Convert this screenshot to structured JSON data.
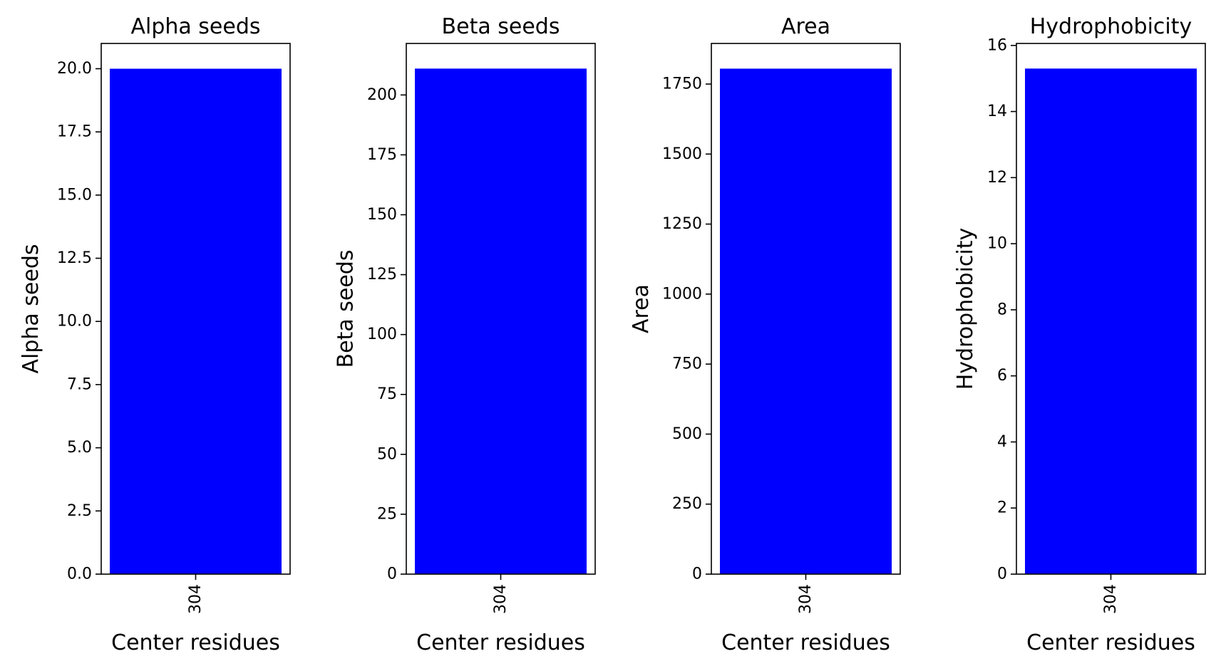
{
  "chart_data": [
    {
      "type": "bar",
      "title": "Alpha seeds",
      "xlabel": "Center residues",
      "ylabel": "Alpha seeds",
      "categories": [
        "304"
      ],
      "values": [
        20.0
      ],
      "ylim": [
        0,
        21
      ],
      "yticks": [
        "0.0",
        "2.5",
        "5.0",
        "7.5",
        "10.0",
        "12.5",
        "15.0",
        "17.5",
        "20.0"
      ],
      "color": "#0000ff",
      "grid": false
    },
    {
      "type": "bar",
      "title": "Beta seeds",
      "xlabel": "Center residues",
      "ylabel": "Beta seeds",
      "categories": [
        "304"
      ],
      "values": [
        211
      ],
      "ylim": [
        0,
        221.5
      ],
      "yticks": [
        "0",
        "25",
        "50",
        "75",
        "100",
        "125",
        "150",
        "175",
        "200"
      ],
      "color": "#0000ff",
      "grid": false
    },
    {
      "type": "bar",
      "title": "Area",
      "xlabel": "Center residues",
      "ylabel": "Area",
      "categories": [
        "304"
      ],
      "values": [
        1805
      ],
      "ylim": [
        0,
        1895
      ],
      "yticks": [
        "0",
        "250",
        "500",
        "750",
        "1000",
        "1250",
        "1500",
        "1750"
      ],
      "color": "#0000ff",
      "grid": false
    },
    {
      "type": "bar",
      "title": "Hydrophobicity",
      "xlabel": "Center residues",
      "ylabel": "Hydrophobicity",
      "categories": [
        "304"
      ],
      "values": [
        15.3
      ],
      "ylim": [
        0,
        16.06
      ],
      "yticks": [
        "0",
        "2",
        "4",
        "6",
        "8",
        "10",
        "12",
        "14",
        "16"
      ],
      "color": "#0000ff",
      "grid": false
    }
  ]
}
